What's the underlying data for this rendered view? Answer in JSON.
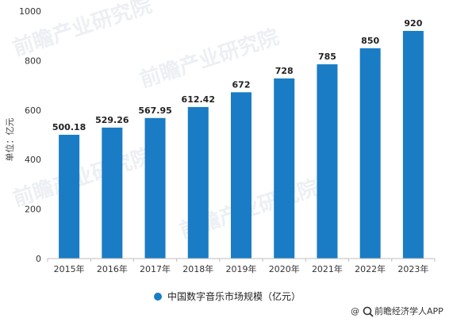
{
  "chart_data": {
    "type": "bar",
    "title": "",
    "xlabel": "",
    "ylabel": "单位：亿元",
    "categories": [
      "2015年",
      "2016年",
      "2017年",
      "2018年",
      "2019年",
      "2020年",
      "2021年",
      "2022年",
      "2023年"
    ],
    "series": [
      {
        "name": "中国数字音乐市场规模（亿元）",
        "values": [
          500.18,
          529.26,
          567.95,
          612.42,
          672,
          728,
          785,
          850,
          920
        ],
        "data_labels": [
          "500.18",
          "529.26",
          "567.95",
          "612.42",
          "672",
          "728",
          "785",
          "850",
          "920"
        ],
        "color": "#1a7cc4"
      }
    ],
    "ylim": [
      0,
      1000
    ],
    "yticks": [
      0,
      200,
      400,
      600,
      800,
      1000
    ],
    "grid": false,
    "legend_position": "bottom"
  },
  "watermark": {
    "text": "前瞻产业研究院"
  },
  "source": {
    "text": "@前瞻经济学人APP",
    "icon": "magnifier-logo-icon"
  }
}
